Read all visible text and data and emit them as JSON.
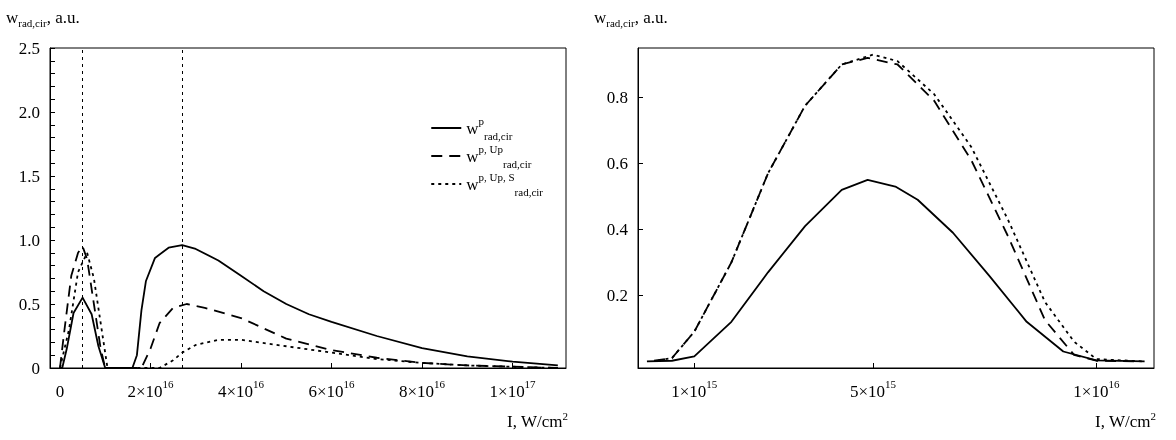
{
  "chart_data": [
    {
      "type": "line",
      "xlabel": "I, W/cm$^{2}$",
      "ylabel": "w$_{rad,cir}$, a.u.",
      "xlim": [
        -2200000000000000.0,
        1.118e+17
      ],
      "xticks": [
        0,
        {
          "value": 2e+16,
          "label": "2×10$^{16}$"
        },
        {
          "value": 4e+16,
          "label": "4×10$^{16}$"
        },
        {
          "value": 6e+16,
          "label": "6×10$^{16}$"
        },
        {
          "value": 8e+16,
          "label": "8×10$^{16}$"
        },
        {
          "value": 1e+17,
          "label": "1×10$^{17}$"
        }
      ],
      "ylim": [
        0,
        2.5
      ],
      "yticks": [
        0,
        {
          "value": 0.1,
          "label": null
        },
        {
          "value": 0.2,
          "label": null
        },
        {
          "value": 0.3,
          "label": null
        },
        {
          "value": 0.4,
          "label": null
        },
        0.5,
        {
          "value": 0.6,
          "label": null
        },
        {
          "value": 0.7,
          "label": null
        },
        {
          "value": 0.8,
          "label": null
        },
        {
          "value": 0.9,
          "label": null
        },
        {
          "value": 1,
          "label": "1.0"
        },
        {
          "value": 1.1,
          "label": null
        },
        {
          "value": 1.2,
          "label": null
        },
        {
          "value": 1.3,
          "label": null
        },
        {
          "value": 1.4,
          "label": null
        },
        1.5,
        {
          "value": 1.6,
          "label": null
        },
        {
          "value": 1.7,
          "label": null
        },
        {
          "value": 1.8,
          "label": null
        },
        {
          "value": 1.9,
          "label": null
        },
        {
          "value": 2,
          "label": "2.0"
        },
        {
          "value": 2.1,
          "label": null
        },
        {
          "value": 2.2,
          "label": null
        },
        {
          "value": 2.3,
          "label": null
        },
        {
          "value": 2.4,
          "label": null
        },
        2.5
      ],
      "grid": false,
      "legend": "top right",
      "marker": "none",
      "ref_lines": [
        {
          "axis": "x",
          "value": 5000000000000000.0,
          "line_style": "dotted",
          "color": "#000000"
        },
        {
          "axis": "x",
          "value": 2.7e+16,
          "line_style": "dotted",
          "color": "#000000"
        }
      ],
      "series": [
        {
          "name": "w$^{p}$$_{rad,cir}$",
          "color": "#000000",
          "line_style": "solid",
          "x": [
            0,
            500000000000000.0,
            1500000000000000.0,
            3000000000000000.0,
            5000000000000000.0,
            7000000000000000.0,
            8500000000000000.0,
            1e+16,
            1.6e+16,
            1.7e+16,
            1.8e+16,
            1.9e+16,
            2.1e+16,
            2.4e+16,
            2.7e+16,
            3e+16,
            3.5e+16,
            4e+16,
            4.5e+16,
            5e+16,
            5.5e+16,
            6e+16,
            7e+16,
            8e+16,
            9e+16,
            1e+17,
            1.1e+17
          ],
          "values": [
            0,
            0,
            0.15,
            0.43,
            0.55,
            0.42,
            0.17,
            0,
            0,
            0.1,
            0.45,
            0.68,
            0.86,
            0.94,
            0.96,
            0.93,
            0.84,
            0.72,
            0.6,
            0.5,
            0.42,
            0.36,
            0.25,
            0.155,
            0.09,
            0.05,
            0.02
          ]
        },
        {
          "name": "w$^{p, Up}$$_{rad,cir}$",
          "color": "#000000",
          "line_style": "dashed",
          "x": [
            0,
            1000000000000000.0,
            2500000000000000.0,
            4000000000000000.0,
            5000000000000000.0,
            6000000000000000.0,
            7500000000000000.0,
            9000000000000000.0,
            1e+16,
            1.8e+16,
            2e+16,
            2.2e+16,
            2.5e+16,
            2.8e+16,
            3.2e+16,
            4e+16,
            5e+16,
            6e+16,
            7e+16,
            8e+16,
            9e+16,
            1e+17,
            1.1e+17
          ],
          "values": [
            0,
            0.3,
            0.72,
            0.9,
            0.95,
            0.85,
            0.5,
            0.15,
            0,
            0,
            0.15,
            0.35,
            0.47,
            0.5,
            0.47,
            0.39,
            0.23,
            0.14,
            0.08,
            0.04,
            0.02,
            0.01,
            0
          ]
        },
        {
          "name": "w$^{p, Up, S}$$_{rad,cir}$",
          "color": "#000000",
          "line_style": "dotted",
          "x": [
            0,
            2000000000000000.0,
            4000000000000000.0,
            6000000000000000.0,
            7500000000000000.0,
            9000000000000000.0,
            1.05e+16,
            2.2e+16,
            2.5e+16,
            2.7e+16,
            3e+16,
            3.5e+16,
            4e+16,
            5e+16,
            6e+16,
            7e+16,
            8e+16,
            9e+16,
            1e+17,
            1.1e+17
          ],
          "values": [
            0,
            0.3,
            0.75,
            0.9,
            0.7,
            0.35,
            0,
            0,
            0.06,
            0.12,
            0.18,
            0.22,
            0.22,
            0.17,
            0.12,
            0.07,
            0.04,
            0.02,
            0.01,
            0
          ]
        }
      ]
    },
    {
      "type": "line",
      "xlabel": "I, W/cm$^{2}$",
      "ylabel": "w$_{rad,cir}$, a.u.",
      "xlim": [
        -260000000000000.0,
        1.129e+16
      ],
      "xticks": [
        {
          "value": 1000000000000000.0,
          "label": "1×10$^{15}$"
        },
        {
          "value": 5000000000000000.0,
          "label": "5×10$^{15}$"
        },
        {
          "value": 1e+16,
          "label": "1×10$^{16}$"
        }
      ],
      "ylim": [
        -0.02,
        0.95
      ],
      "yticks": [
        0.2,
        0.4,
        0.6,
        0.8
      ],
      "grid": false,
      "marker": "none",
      "series": [
        {
          "color": "#000000",
          "line_style": "solid",
          "x": [
            -60000000000000.0,
            500000000000000.0,
            1000000000000000.0,
            1830000000000000.0,
            2650000000000000.0,
            3480000000000000.0,
            4300000000000000.0,
            4880000000000000.0,
            5500000000000000.0,
            6000000000000000.0,
            6790000000000000.0,
            7600000000000000.0,
            8440000000000000.0,
            9260000000000000.0,
            1e+16,
            1.108e+16
          ],
          "values": [
            0,
            0.002,
            0.015,
            0.12,
            0.27,
            0.41,
            0.52,
            0.55,
            0.53,
            0.49,
            0.39,
            0.26,
            0.12,
            0.03,
            0.003,
            0
          ]
        },
        {
          "color": "#000000",
          "line_style": "dashed",
          "x": [
            100000000000000.0,
            500000000000000.0,
            1000000000000000.0,
            1830000000000000.0,
            2650000000000000.0,
            3480000000000000.0,
            4300000000000000.0,
            4880000000000000.0,
            5550000000000000.0,
            6370000000000000.0,
            7200000000000000.0,
            8020000000000000.0,
            8850000000000000.0,
            9500000000000000.0,
            1e+16,
            1.1e+16
          ],
          "values": [
            0.002,
            0.01,
            0.09,
            0.3,
            0.57,
            0.775,
            0.9,
            0.92,
            0.9,
            0.79,
            0.61,
            0.38,
            0.125,
            0.02,
            0.002,
            0
          ]
        },
        {
          "color": "#000000",
          "line_style": "dotted",
          "x": [
            200000000000000.0,
            500000000000000.0,
            1000000000000000.0,
            1830000000000000.0,
            2650000000000000.0,
            3480000000000000.0,
            4300000000000000.0,
            5000000000000000.0,
            5550000000000000.0,
            6370000000000000.0,
            7200000000000000.0,
            8020000000000000.0,
            8850000000000000.0,
            9500000000000000.0,
            1e+16,
            1.105e+16
          ],
          "values": [
            0.003,
            0.01,
            0.09,
            0.3,
            0.57,
            0.775,
            0.9,
            0.93,
            0.91,
            0.81,
            0.65,
            0.43,
            0.18,
            0.06,
            0.007,
            0
          ]
        }
      ]
    }
  ]
}
